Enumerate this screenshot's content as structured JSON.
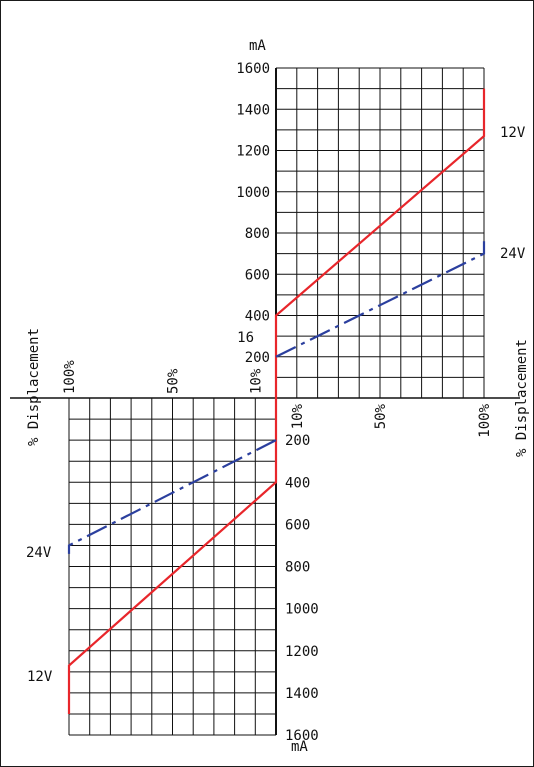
{
  "chart_data": [
    {
      "type": "line",
      "quadrant": "upper-right",
      "x_axis_label": "% Displacement",
      "x_ticks": [
        "10%",
        "50%",
        "100%"
      ],
      "y_axis_unit": "mA",
      "y_ticks": [
        "200",
        "400",
        "600",
        "800",
        "1000",
        "1200",
        "1400",
        "1600"
      ],
      "ylim": [
        0,
        1600
      ],
      "xlim": [
        0,
        100
      ],
      "extra_label": "16",
      "grid": true,
      "series": [
        {
          "name": "12V",
          "color": "#e8262b",
          "style": "solid",
          "x": [
            0,
            0,
            100,
            100
          ],
          "y": [
            0,
            400,
            1270,
            1500
          ]
        },
        {
          "name": "24V",
          "color": "#2b3f9e",
          "style": "dash-dot",
          "x": [
            0,
            100,
            100
          ],
          "y": [
            200,
            700,
            760
          ]
        }
      ]
    },
    {
      "type": "line",
      "quadrant": "lower-left",
      "x_axis_label": "% Displacement",
      "x_ticks": [
        "10%",
        "50%",
        "100%"
      ],
      "y_axis_unit": "mA",
      "y_ticks": [
        "200",
        "400",
        "600",
        "800",
        "1000",
        "1200",
        "1400",
        "1600"
      ],
      "ylim": [
        0,
        1600
      ],
      "xlim": [
        0,
        100
      ],
      "grid": true,
      "series": [
        {
          "name": "12V",
          "color": "#e8262b",
          "style": "solid",
          "x": [
            0,
            0,
            100,
            100
          ],
          "y": [
            0,
            400,
            1270,
            1500
          ]
        },
        {
          "name": "24V",
          "color": "#2b3f9e",
          "style": "dash-dot",
          "x": [
            0,
            100,
            100
          ],
          "y": [
            200,
            700,
            740
          ]
        }
      ]
    }
  ]
}
